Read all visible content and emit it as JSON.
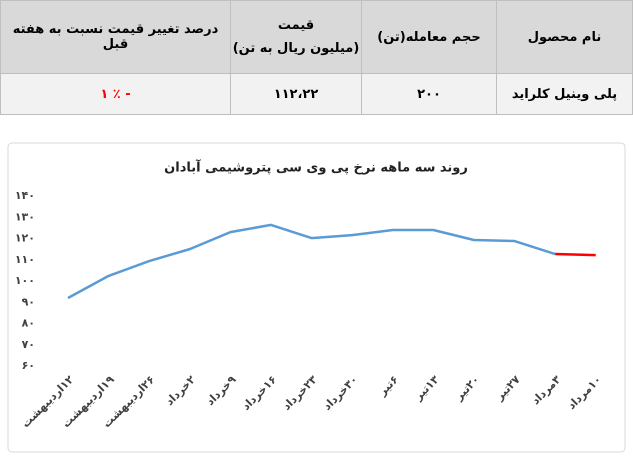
{
  "table": {
    "headers": [
      "نام محصول",
      "حجم معامله(تن)",
      [
        "قیمت",
        "(میلیون ریال به تن)"
      ],
      "درصد تغییر قیمت نسبت به هفته قبل"
    ],
    "rows": [
      [
        "پلی وینیل کلراید",
        "۲۰۰",
        "۱۱۲،۲۲",
        "۱ ٪ -"
      ]
    ]
  },
  "chart_data": {
    "type": "line",
    "title": "روند سه ماهه نرخ پی وی سی پتروشیمی آبادان",
    "categories": [
      "۱۲اردیبهشت",
      "۱۹اردیبهشت",
      "۲۶اردیبهشت",
      "۲خرداد",
      "۹خرداد",
      "۱۶خرداد",
      "۲۳خرداد",
      "۳۰خرداد",
      "۶تیر",
      "۱۳تیر",
      "۲۰تیر",
      "۲۷تیر",
      "۳مرداد",
      "۱۰مرداد"
    ],
    "series": [
      {
        "color": "#5b9bd5",
        "last_segment_color": "#ff0000",
        "values": [
          92,
          102.4,
          109.4,
          115,
          123,
          126.4,
          120.2,
          121.6,
          124,
          124,
          119.3,
          118.8,
          112.7,
          112.2
        ]
      }
    ],
    "ylim": [
      60,
      140
    ],
    "yticks": [
      {
        "value": 60,
        "label": "۶۰"
      },
      {
        "value": 70,
        "label": "۷۰"
      },
      {
        "value": 80,
        "label": "۸۰"
      },
      {
        "value": 90,
        "label": "۹۰"
      },
      {
        "value": 100,
        "label": "۱۰۰"
      },
      {
        "value": 110,
        "label": "۱۱۰"
      },
      {
        "value": 120,
        "label": "۱۲۰"
      },
      {
        "value": 130,
        "label": "۱۳۰"
      },
      {
        "value": 140,
        "label": "۱۴۰"
      }
    ],
    "grid": false
  }
}
